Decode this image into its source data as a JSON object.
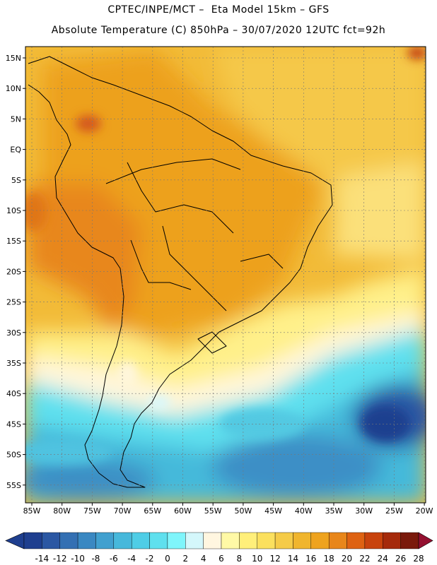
{
  "header": {
    "line1": "CPTEC/INPE/MCT –  Eta Model 15km – GFS",
    "line2": "Absolute Temperature (C) 850hPa – 30/07/2020 12UTC fct=92h"
  },
  "map": {
    "lat_labels": [
      "15N",
      "10N",
      "5N",
      "EQ",
      "5S",
      "10S",
      "15S",
      "20S",
      "25S",
      "30S",
      "35S",
      "40S",
      "45S",
      "50S",
      "55S"
    ],
    "lon_labels": [
      "85W",
      "80W",
      "75W",
      "70W",
      "65W",
      "60W",
      "55W",
      "50W",
      "45W",
      "40W",
      "35W",
      "30W",
      "25W",
      "20W"
    ]
  },
  "colorbar": {
    "labels": [
      "-14",
      "-12",
      "-10",
      "-8",
      "-6",
      "-4",
      "-2",
      "0",
      "2",
      "4",
      "6",
      "8",
      "10",
      "12",
      "14",
      "16",
      "18",
      "20",
      "22",
      "24",
      "26",
      "28"
    ],
    "colors": [
      "#1f3f8f",
      "#2b57a3",
      "#3470b3",
      "#3a88c2",
      "#41a0cf",
      "#47b8db",
      "#4fcde6",
      "#5fe0ee",
      "#7ff5fb",
      "#d4f7fb",
      "#fff6e0",
      "#fff9a6",
      "#ffef7a",
      "#fbe05e",
      "#f5cb48",
      "#f0b52e",
      "#eea31f",
      "#e8861a",
      "#de6212",
      "#c8430d",
      "#a52a0b",
      "#7a1a0c",
      "#941030"
    ]
  }
}
